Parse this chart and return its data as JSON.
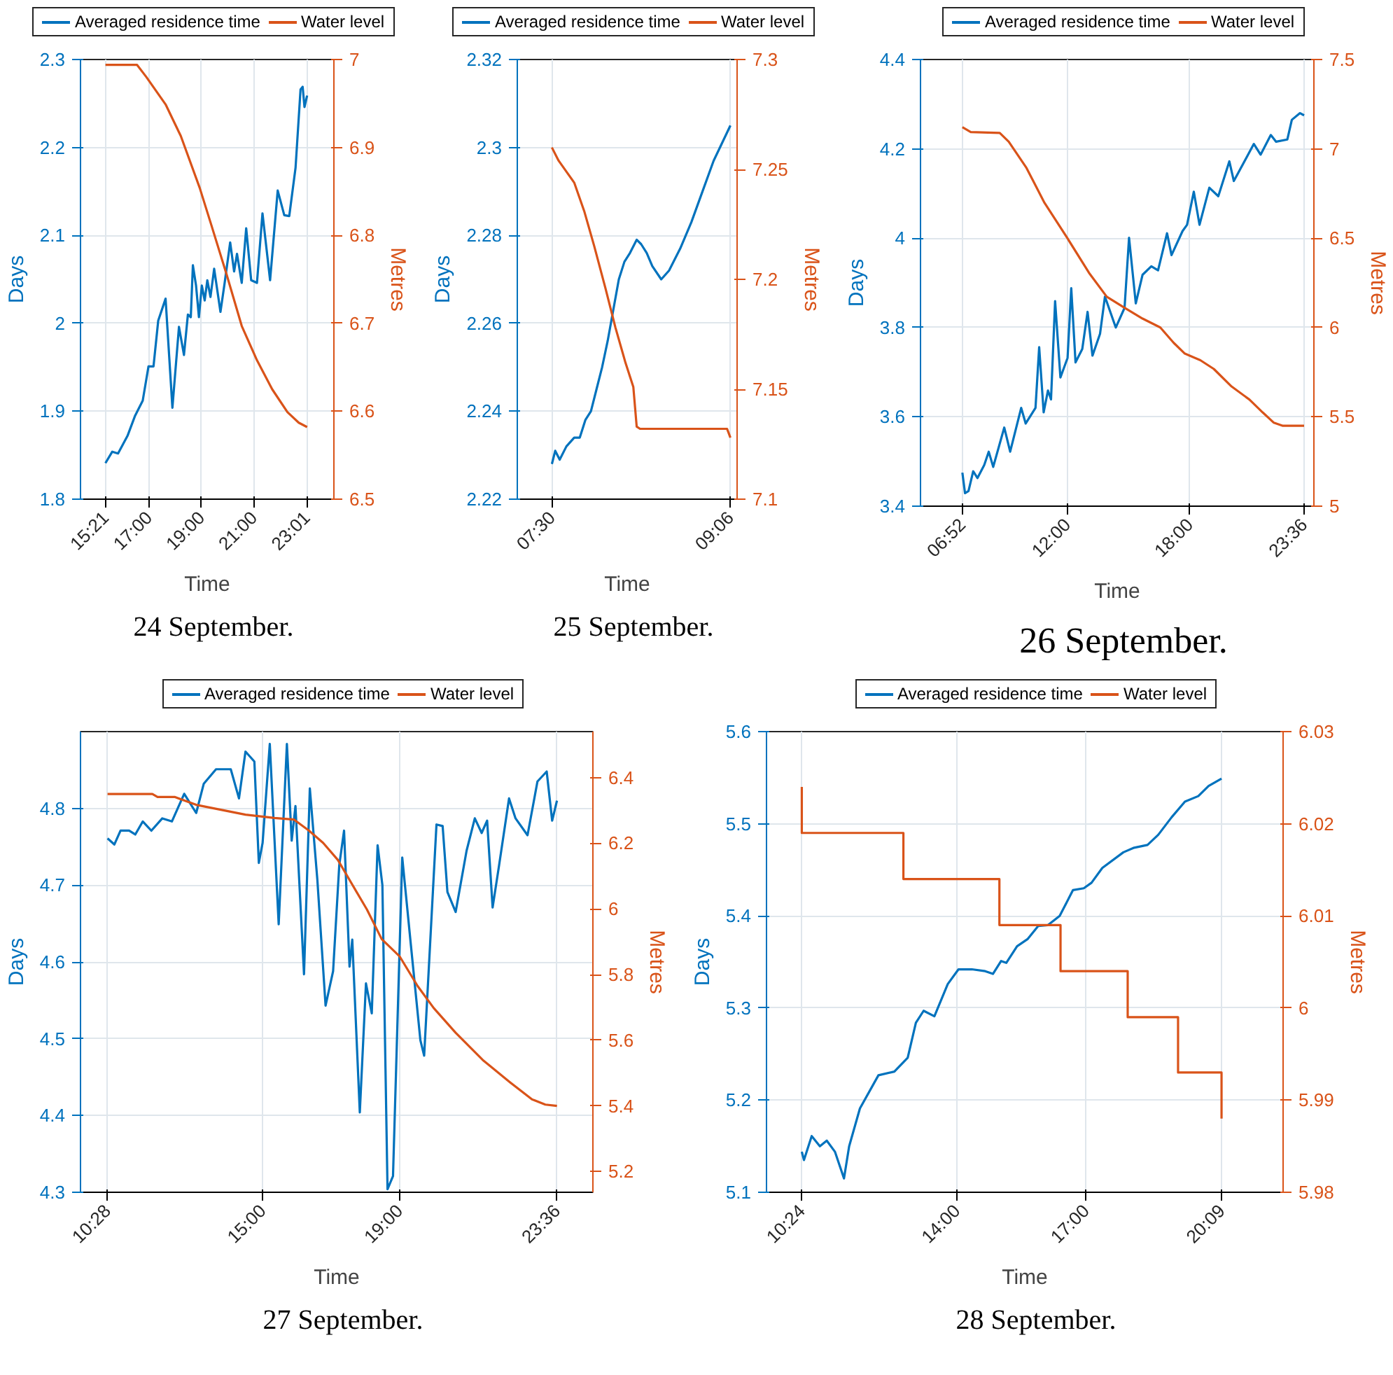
{
  "chart_data": [
    {
      "type": "line",
      "xlabel": "Time",
      "ylabel": "Days",
      "y2label": "Metres",
      "annotations": [
        "24 September."
      ],
      "xlim": [
        14.4,
        24.05
      ],
      "ylim": [
        1.8,
        2.3
      ],
      "y2lim": [
        6.5,
        7
      ],
      "xticks": [
        {
          "value": 15.35,
          "label": "15:21"
        },
        {
          "value": 17,
          "label": "17:00"
        },
        {
          "value": 19,
          "label": "19:00"
        },
        {
          "value": 21,
          "label": "21:00"
        },
        {
          "value": 23.017,
          "label": "23:01"
        }
      ],
      "yticks": [
        1.8,
        1.9,
        2,
        2.1,
        2.2,
        2.3
      ],
      "y2ticks": [
        6.5,
        6.6,
        6.7,
        6.8,
        6.9,
        7
      ],
      "grid": true,
      "legend": "top",
      "series": [
        {
          "name": "Averaged residence time",
          "color": "#0072bd",
          "x": [
            15.35,
            15.61,
            15.83,
            16.19,
            16.48,
            16.77,
            16.99,
            17.18,
            17.36,
            17.64,
            17.9,
            18.15,
            18.34,
            18.49,
            18.6,
            18.68,
            18.8,
            18.91,
            19.02,
            19.13,
            19.23,
            19.35,
            19.49,
            19.73,
            19.89,
            20.1,
            20.25,
            20.36,
            20.54,
            20.71,
            20.9,
            21.12,
            21.33,
            21.62,
            21.91,
            22.16,
            22.35,
            22.59,
            22.78,
            22.86,
            22.93,
            23.03
          ],
          "values": [
            1.841,
            1.854,
            1.852,
            1.872,
            1.895,
            1.912,
            1.951,
            1.951,
            2.003,
            2.028,
            1.904,
            1.996,
            1.964,
            2.01,
            2.007,
            2.066,
            2.043,
            2.007,
            2.043,
            2.026,
            2.049,
            2.03,
            2.062,
            2.013,
            2.046,
            2.092,
            2.059,
            2.079,
            2.046,
            2.108,
            2.049,
            2.046,
            2.125,
            2.049,
            2.151,
            2.123,
            2.122,
            2.177,
            2.266,
            2.269,
            2.246,
            2.259
          ]
        },
        {
          "name": "Water level",
          "color": "#d95319",
          "axis": "y2",
          "x": [
            15.35,
            16.55,
            16.91,
            17.64,
            18.22,
            18.94,
            19.38,
            19.96,
            20.54,
            21.12,
            21.7,
            22.28,
            22.71,
            23.03
          ],
          "values": [
            6.994,
            6.994,
            6.98,
            6.949,
            6.913,
            6.854,
            6.812,
            6.756,
            6.697,
            6.658,
            6.625,
            6.599,
            6.587,
            6.582
          ]
        }
      ]
    },
    {
      "type": "line",
      "xlabel": "Time",
      "ylabel": "Days",
      "y2label": "Metres",
      "annotations": [
        "25 September."
      ],
      "xlim": [
        7.19,
        9.16
      ],
      "ylim": [
        2.22,
        2.32
      ],
      "y2lim": [
        7.1,
        7.3
      ],
      "xticks": [
        {
          "value": 7.5,
          "label": "07:30"
        },
        {
          "value": 9.1,
          "label": "09:06"
        }
      ],
      "yticks": [
        2.22,
        2.24,
        2.26,
        2.28,
        2.3,
        2.32
      ],
      "y2ticks": [
        7.1,
        7.15,
        7.2,
        7.25,
        7.3
      ],
      "grid": true,
      "legend": "top",
      "series": [
        {
          "name": "Averaged residence time",
          "color": "#0072bd",
          "x": [
            7.5,
            7.53,
            7.57,
            7.63,
            7.7,
            7.75,
            7.8,
            7.85,
            7.9,
            7.95,
            8.0,
            8.05,
            8.1,
            8.15,
            8.2,
            8.26,
            8.3,
            8.35,
            8.4,
            8.48,
            8.55,
            8.65,
            8.75,
            8.85,
            8.95,
            9.1
          ],
          "values": [
            2.228,
            2.231,
            2.229,
            2.232,
            2.234,
            2.234,
            2.238,
            2.24,
            2.245,
            2.25,
            2.256,
            2.263,
            2.27,
            2.274,
            2.276,
            2.279,
            2.278,
            2.276,
            2.273,
            2.27,
            2.272,
            2.277,
            2.283,
            2.29,
            2.297,
            2.305
          ]
        },
        {
          "name": "Water level",
          "color": "#d95319",
          "axis": "y2",
          "x": [
            7.5,
            7.56,
            7.63,
            7.7,
            7.79,
            7.88,
            7.98,
            8.07,
            8.16,
            8.23,
            8.26,
            8.29,
            9.07,
            9.1
          ],
          "values": [
            7.26,
            7.254,
            7.249,
            7.244,
            7.231,
            7.215,
            7.196,
            7.178,
            7.162,
            7.151,
            7.133,
            7.132,
            7.132,
            7.128
          ]
        }
      ]
    },
    {
      "type": "line",
      "xlabel": "Time",
      "ylabel": "Days",
      "y2label": "Metres",
      "annotations": [
        "26 September."
      ],
      "xlim": [
        4.82,
        24.08
      ],
      "ylim": [
        3.4,
        4.4
      ],
      "y2lim": [
        5,
        7.5
      ],
      "xticks": [
        {
          "value": 6.867,
          "label": "06:52"
        },
        {
          "value": 12,
          "label": "12:00"
        },
        {
          "value": 18,
          "label": "18:00"
        },
        {
          "value": 23.6,
          "label": "23:36"
        }
      ],
      "yticks": [
        3.4,
        3.6,
        3.8,
        4,
        4.2,
        4.4
      ],
      "y2ticks": [
        5,
        5.5,
        6,
        6.5,
        7,
        7.5
      ],
      "grid": true,
      "legend": "top",
      "series": [
        {
          "name": "Averaged residence time",
          "color": "#0072bd",
          "x": [
            6.87,
            7.0,
            7.17,
            7.4,
            7.61,
            7.94,
            8.16,
            8.38,
            8.92,
            9.21,
            9.75,
            9.97,
            10.45,
            10.63,
            10.85,
            11.06,
            11.21,
            11.41,
            11.67,
            12.02,
            12.2,
            12.41,
            12.74,
            13.0,
            13.24,
            13.61,
            13.85,
            14.38,
            14.81,
            15.03,
            15.36,
            15.69,
            16.12,
            16.45,
            16.89,
            17.11,
            17.65,
            17.87,
            18.2,
            18.48,
            18.96,
            19.4,
            19.94,
            20.16,
            21.14,
            21.47,
            21.97,
            22.23,
            22.78,
            23.0,
            23.4,
            23.6
          ],
          "values": [
            3.475,
            3.429,
            3.434,
            3.478,
            3.463,
            3.492,
            3.522,
            3.488,
            3.576,
            3.522,
            3.62,
            3.585,
            3.62,
            3.756,
            3.61,
            3.659,
            3.639,
            3.859,
            3.688,
            3.732,
            3.888,
            3.722,
            3.752,
            3.835,
            3.737,
            3.786,
            3.869,
            3.8,
            3.844,
            4.001,
            3.854,
            3.918,
            3.937,
            3.928,
            4.011,
            3.962,
            4.016,
            4.03,
            4.104,
            4.03,
            4.113,
            4.094,
            4.172,
            4.128,
            4.211,
            4.187,
            4.231,
            4.216,
            4.221,
            4.265,
            4.28,
            4.275
          ]
        },
        {
          "name": "Water level",
          "color": "#d95319",
          "axis": "y2",
          "x": [
            6.87,
            7.28,
            8.7,
            9.14,
            10.01,
            10.89,
            12.0,
            13.07,
            13.94,
            14.81,
            15.69,
            16.56,
            17.21,
            17.76,
            18.52,
            19.18,
            20.05,
            20.92,
            21.58,
            22.12,
            22.56,
            23.6
          ],
          "values": [
            7.121,
            7.094,
            7.089,
            7.04,
            6.893,
            6.698,
            6.502,
            6.306,
            6.172,
            6.11,
            6.05,
            6.0,
            5.915,
            5.854,
            5.817,
            5.768,
            5.67,
            5.597,
            5.524,
            5.467,
            5.45,
            5.45
          ]
        }
      ]
    },
    {
      "type": "line",
      "xlabel": "Time",
      "ylabel": "Days",
      "y2label": "Metres",
      "annotations": [
        "27 September."
      ],
      "xlim": [
        9.68,
        24.65
      ],
      "ylim": [
        4.3,
        4.9
      ],
      "y2lim": [
        5.137,
        6.54
      ],
      "xticks": [
        {
          "value": 10.467,
          "label": "10:28"
        },
        {
          "value": 15,
          "label": "15:00"
        },
        {
          "value": 19,
          "label": "19:00"
        },
        {
          "value": 23.6,
          "label": "23:36"
        }
      ],
      "yticks": [
        4.3,
        4.4,
        4.5,
        4.6,
        4.7,
        4.8
      ],
      "y2ticks": [
        5.2,
        5.4,
        5.6,
        5.8,
        6,
        6.2,
        6.4
      ],
      "grid": true,
      "legend": "top",
      "series": [
        {
          "name": "Averaged residence time",
          "color": "#0072bd",
          "x": [
            10.47,
            10.67,
            10.85,
            11.1,
            11.28,
            11.5,
            11.75,
            12.07,
            12.35,
            12.71,
            13.06,
            13.28,
            13.64,
            14.07,
            14.31,
            14.5,
            14.76,
            14.89,
            15.0,
            15.21,
            15.47,
            15.71,
            15.85,
            15.96,
            16.21,
            16.38,
            16.6,
            16.84,
            17.06,
            17.24,
            17.38,
            17.54,
            17.62,
            17.84,
            18.02,
            18.19,
            18.36,
            18.5,
            18.65,
            18.81,
            19.08,
            19.33,
            19.61,
            19.72,
            20.08,
            20.26,
            20.4,
            20.64,
            20.96,
            21.2,
            21.4,
            21.56,
            21.72,
            21.91,
            22.2,
            22.39,
            22.74,
            23.03,
            23.3,
            23.46,
            23.6
          ],
          "values": [
            4.761,
            4.753,
            4.771,
            4.771,
            4.766,
            4.783,
            4.771,
            4.787,
            4.783,
            4.819,
            4.794,
            4.832,
            4.851,
            4.851,
            4.813,
            4.874,
            4.861,
            4.729,
            4.755,
            4.884,
            4.649,
            4.884,
            4.758,
            4.803,
            4.584,
            4.826,
            4.707,
            4.543,
            4.588,
            4.726,
            4.771,
            4.594,
            4.629,
            4.404,
            4.572,
            4.533,
            4.752,
            4.7,
            4.304,
            4.321,
            4.736,
            4.623,
            4.498,
            4.478,
            4.779,
            4.777,
            4.691,
            4.665,
            4.745,
            4.787,
            4.768,
            4.784,
            4.671,
            4.726,
            4.813,
            4.787,
            4.765,
            4.835,
            4.848,
            4.784,
            4.81
          ]
        },
        {
          "name": "Water level",
          "color": "#d95319",
          "axis": "y2",
          "x": [
            10.47,
            11.78,
            11.93,
            12.43,
            13.06,
            13.78,
            14.5,
            15.35,
            15.92,
            16.35,
            16.77,
            17.2,
            17.62,
            18.05,
            18.48,
            19.0,
            19.53,
            20.0,
            20.64,
            21.43,
            22.23,
            22.87,
            23.26,
            23.6
          ],
          "values": [
            6.35,
            6.35,
            6.341,
            6.341,
            6.317,
            6.302,
            6.287,
            6.277,
            6.272,
            6.239,
            6.201,
            6.149,
            6.074,
            5.998,
            5.908,
            5.856,
            5.765,
            5.698,
            5.623,
            5.54,
            5.472,
            5.42,
            5.404,
            5.4
          ]
        }
      ]
    },
    {
      "type": "line",
      "xlabel": "Time",
      "ylabel": "Days",
      "y2label": "Metres",
      "annotations": [
        "28 September."
      ],
      "xlim": [
        9.58,
        21.58
      ],
      "ylim": [
        5.1,
        5.6
      ],
      "y2lim": [
        5.98,
        6.03
      ],
      "xticks": [
        {
          "value": 10.4,
          "label": "10:24"
        },
        {
          "value": 14,
          "label": "14:00"
        },
        {
          "value": 17,
          "label": "17:00"
        },
        {
          "value": 20.15,
          "label": "20:09"
        }
      ],
      "yticks": [
        5.1,
        5.2,
        5.3,
        5.4,
        5.5,
        5.6
      ],
      "y2ticks": [
        5.98,
        5.99,
        6,
        6.01,
        6.02,
        6.03
      ],
      "grid": true,
      "legend": "top",
      "series": [
        {
          "name": "Averaged residence time",
          "color": "#0072bd",
          "x": [
            10.4,
            10.45,
            10.63,
            10.82,
            10.98,
            11.17,
            11.38,
            11.5,
            11.75,
            12.18,
            12.55,
            12.86,
            13.05,
            13.23,
            13.48,
            13.79,
            14.04,
            14.35,
            14.66,
            14.84,
            15.03,
            15.15,
            15.4,
            15.65,
            15.89,
            16.12,
            16.39,
            16.7,
            16.95,
            17.13,
            17.38,
            17.87,
            18.12,
            18.43,
            18.68,
            18.99,
            19.3,
            19.61,
            19.85,
            20.15
          ],
          "values": [
            5.144,
            5.135,
            5.161,
            5.15,
            5.156,
            5.144,
            5.115,
            5.15,
            5.191,
            5.227,
            5.231,
            5.246,
            5.284,
            5.297,
            5.291,
            5.326,
            5.342,
            5.342,
            5.34,
            5.337,
            5.351,
            5.349,
            5.367,
            5.375,
            5.389,
            5.39,
            5.4,
            5.428,
            5.43,
            5.436,
            5.452,
            5.469,
            5.474,
            5.477,
            5.488,
            5.507,
            5.524,
            5.53,
            5.541,
            5.549
          ]
        },
        {
          "name": "Water level",
          "color": "#d95319",
          "axis": "y2",
          "x": [
            10.4,
            10.4,
            12.76,
            12.76,
            14.99,
            14.99,
            16.41,
            16.41,
            17.97,
            17.97,
            19.14,
            19.14,
            20.15,
            20.15
          ],
          "values": [
            6.024,
            6.019,
            6.019,
            6.014,
            6.014,
            6.009,
            6.009,
            6.004,
            6.004,
            5.999,
            5.999,
            5.993,
            5.993,
            5.988
          ]
        }
      ]
    }
  ]
}
